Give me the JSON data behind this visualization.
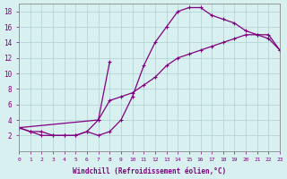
{
  "xlabel": "Windchill (Refroidissement éolien,°C)",
  "line_color": "#800080",
  "bg_color": "#d8f0f0",
  "grid_color": "#b0d0d0",
  "xlim": [
    0,
    23
  ],
  "ylim": [
    0,
    19
  ],
  "xticks": [
    0,
    1,
    2,
    3,
    4,
    5,
    6,
    7,
    8,
    9,
    10,
    11,
    12,
    13,
    14,
    15,
    16,
    17,
    18,
    19,
    20,
    21,
    22,
    23
  ],
  "yticks": [
    2,
    4,
    6,
    8,
    10,
    12,
    14,
    16,
    18
  ],
  "curve1_x": [
    0,
    1,
    2,
    3,
    4,
    5,
    6,
    7,
    8,
    9,
    10,
    11,
    12,
    13,
    14,
    15,
    16,
    17,
    18,
    19,
    20,
    21,
    22,
    23
  ],
  "curve1_y": [
    3,
    2.5,
    2,
    2,
    2,
    2,
    2.5,
    2,
    2.5,
    4,
    7,
    11,
    14,
    16,
    18,
    18.5,
    18.5,
    17.5,
    17,
    16.5,
    15.5,
    15,
    15,
    13
  ],
  "curve2_x": [
    0,
    1,
    2,
    3,
    4,
    5,
    6,
    7,
    8,
    9,
    10,
    11,
    12,
    13,
    14,
    15,
    16,
    17,
    18,
    19,
    20,
    21,
    22,
    23
  ],
  "curve2_y": [
    3,
    2.5,
    2.5,
    2,
    2,
    2,
    2.5,
    4,
    6.5,
    7,
    7.5,
    8.5,
    9.5,
    11,
    12,
    12.5,
    13,
    13.5,
    14,
    14.5,
    15,
    15,
    14.5,
    13
  ],
  "curve3_x": [
    0,
    7,
    8
  ],
  "curve3_y": [
    3,
    4,
    11.5
  ],
  "marker": "+",
  "markersize": 3,
  "linewidth": 0.9
}
